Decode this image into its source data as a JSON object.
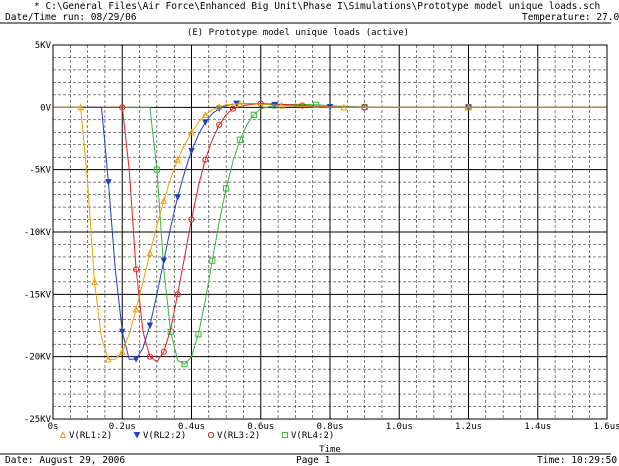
{
  "header": {
    "file_path": "* C:\\General Files\\Air Force\\Enhanced Big Unit\\Phase I\\Simulations\\Prototype model unique loads.sch",
    "run_date": "Date/Time run: 08/29/06",
    "temperature": "Temperature: 27.0"
  },
  "footer": {
    "date": "Date: August 29, 2006",
    "page": "Page 1",
    "time": "Time: 10:29:50"
  },
  "chart_data": {
    "type": "line",
    "title": "(E) Prototype model unique loads (active)",
    "xlabel": "Time",
    "ylabel": "",
    "xlim": [
      0,
      1.6
    ],
    "ylim": [
      -25,
      5
    ],
    "x_ticks": [
      0,
      0.2,
      0.4,
      0.6,
      0.8,
      1.0,
      1.2,
      1.4,
      1.6
    ],
    "x_tick_labels": [
      "0s",
      "0.2us",
      "0.4us",
      "0.6us",
      "0.8us",
      "1.0us",
      "1.2us",
      "1.4us",
      "1.6us"
    ],
    "y_ticks": [
      5,
      0,
      -5,
      -10,
      -15,
      -20,
      -25
    ],
    "y_tick_labels": [
      "5KV",
      "0V",
      "-5KV",
      "-10KV",
      "-15KV",
      "-20KV",
      "-25KV"
    ],
    "grid": true,
    "legend_position": "bottom",
    "series": [
      {
        "name": "V(RL4:2)",
        "color": "#3cb43c",
        "marker": "square",
        "x": [
          0,
          0.28,
          0.3,
          0.32,
          0.34,
          0.36,
          0.38,
          0.4,
          0.42,
          0.44,
          0.46,
          0.48,
          0.5,
          0.52,
          0.54,
          0.56,
          0.58,
          0.6,
          0.64,
          0.7,
          0.76,
          0.82,
          0.9,
          1.0,
          1.2,
          1.4,
          1.6
        ],
        "y": [
          0,
          0,
          -5,
          -13,
          -18,
          -20.3,
          -20.6,
          -20,
          -18.2,
          -15.5,
          -12.3,
          -9.2,
          -6.5,
          -4.3,
          -2.6,
          -1.4,
          -0.6,
          -0.1,
          0.15,
          0.25,
          0.2,
          0.1,
          0.03,
          0,
          0,
          0,
          0
        ]
      },
      {
        "name": "V(RL3:2)",
        "color": "#e02020",
        "marker": "circle",
        "x": [
          0,
          0.2,
          0.22,
          0.24,
          0.26,
          0.28,
          0.3,
          0.32,
          0.34,
          0.36,
          0.38,
          0.4,
          0.42,
          0.44,
          0.46,
          0.48,
          0.5,
          0.52,
          0.55,
          0.6,
          0.66,
          0.72,
          0.8,
          0.9,
          1.0,
          1.2,
          1.4,
          1.6
        ],
        "y": [
          0,
          0,
          -5,
          -13,
          -18,
          -20,
          -20.4,
          -19.6,
          -17.8,
          -15,
          -12,
          -9,
          -6.3,
          -4.2,
          -2.6,
          -1.4,
          -0.6,
          -0.1,
          0.15,
          0.3,
          0.25,
          0.15,
          0.05,
          0,
          0,
          0,
          0,
          0
        ]
      },
      {
        "name": "V(RL2:2)",
        "color": "#2040c0",
        "marker": "triangle-down",
        "x": [
          0,
          0.14,
          0.16,
          0.18,
          0.2,
          0.22,
          0.24,
          0.26,
          0.28,
          0.3,
          0.32,
          0.34,
          0.36,
          0.38,
          0.4,
          0.42,
          0.44,
          0.46,
          0.48,
          0.5,
          0.53,
          0.58,
          0.64,
          0.7,
          0.8,
          1.0,
          1.2,
          1.4,
          1.6
        ],
        "y": [
          0,
          0,
          -6,
          -13,
          -18,
          -20.2,
          -20.2,
          -19.3,
          -17.5,
          -15,
          -12.3,
          -9.6,
          -7.2,
          -5.2,
          -3.5,
          -2.2,
          -1.2,
          -0.5,
          -0.1,
          0.15,
          0.3,
          0.3,
          0.2,
          0.1,
          0.03,
          0,
          0,
          0,
          0
        ]
      },
      {
        "name": "V(RL1:2)",
        "color": "#f0a000",
        "marker": "triangle-up",
        "x": [
          0,
          0.08,
          0.1,
          0.12,
          0.14,
          0.16,
          0.18,
          0.2,
          0.22,
          0.24,
          0.26,
          0.28,
          0.3,
          0.32,
          0.34,
          0.36,
          0.38,
          0.4,
          0.42,
          0.44,
          0.46,
          0.48,
          0.5,
          0.54,
          0.6,
          0.66,
          0.74,
          0.84,
          1.0,
          1.2,
          1.4,
          1.6
        ],
        "y": [
          0,
          0,
          -6,
          -14,
          -18.5,
          -20.2,
          -20.2,
          -19.6,
          -18.2,
          -16.2,
          -14,
          -11.7,
          -9.5,
          -7.5,
          -5.7,
          -4.2,
          -3,
          -2,
          -1.2,
          -0.6,
          -0.2,
          0.05,
          0.2,
          0.3,
          0.25,
          0.15,
          0.05,
          0,
          0,
          0,
          0,
          0
        ]
      }
    ]
  }
}
